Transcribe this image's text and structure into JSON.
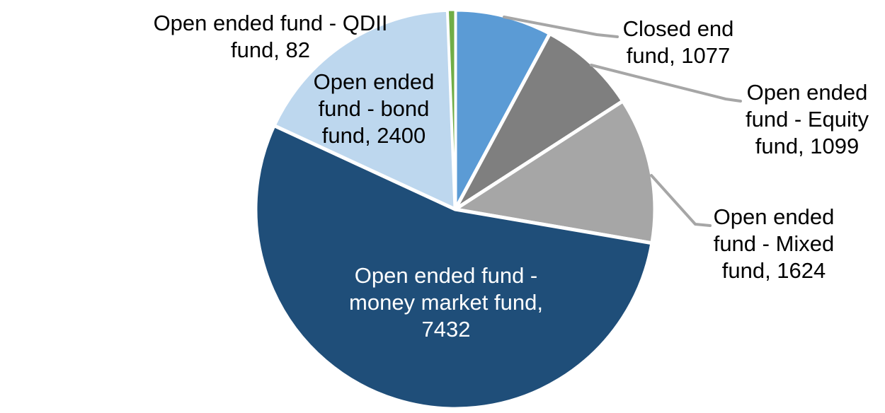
{
  "chart_data": {
    "type": "pie",
    "title": "",
    "legend": "none",
    "grid": false,
    "background_color": "#ffffff",
    "leader_line_color": "#A6A6A6",
    "outside_label_text_color": "#000000",
    "inside_label_text_color": "#FFFFFF",
    "slice_border_color": "#FFFFFF",
    "start_angle_deg": 0,
    "direction": "clockwise",
    "total": 13714,
    "slices": [
      {
        "id": "closed-end-fund",
        "label": "Closed end fund",
        "value": 1077,
        "color": "#5B9BD5"
      },
      {
        "id": "open-ended-equity-fund",
        "label": "Open ended fund - Equity fund",
        "value": 1099,
        "color": "#7F7F7F"
      },
      {
        "id": "open-ended-mixed-fund",
        "label": "Open ended fund - Mixed fund",
        "value": 1624,
        "color": "#A6A6A6"
      },
      {
        "id": "open-ended-money-market-fund",
        "label": "Open ended fund - money market fund",
        "value": 7432,
        "color": "#1F4E79"
      },
      {
        "id": "open-ended-bond-fund",
        "label": "Open ended fund - bond fund",
        "value": 2400,
        "color": "#BDD7EE"
      },
      {
        "id": "open-ended-qdii-fund",
        "label": "Open ended fund - QDII fund",
        "value": 82,
        "color": "#70AD47"
      }
    ]
  },
  "labels": {
    "qdii": {
      "lines": [
        "Open ended fund - QDII",
        "fund, 82"
      ]
    },
    "bond": {
      "lines": [
        "Open ended",
        "fund - bond",
        "fund, 2400"
      ]
    },
    "closed": {
      "lines": [
        "Closed end",
        "fund, 1077"
      ]
    },
    "equity": {
      "lines": [
        "Open ended",
        "fund - Equity",
        "fund, 1099"
      ]
    },
    "mixed": {
      "lines": [
        "Open ended",
        "fund - Mixed",
        "fund, 1624"
      ]
    },
    "money": {
      "lines": [
        "Open ended fund -",
        "money market fund,",
        "7432"
      ]
    }
  }
}
